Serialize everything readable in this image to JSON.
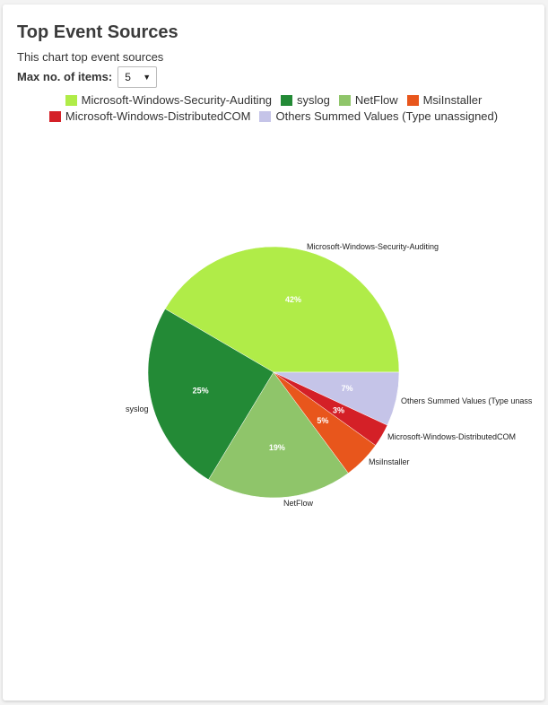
{
  "header": {
    "title": "Top Event Sources",
    "subtitle": "This chart top event sources",
    "max_items_label": "Max no. of items:",
    "max_items_value": "5",
    "select_caret": "▼"
  },
  "colors": {
    "microsoft_security": "#b0ec48",
    "syslog": "#238a36",
    "netflow": "#8fc56a",
    "msiinstaller": "#e8561c",
    "distributedcom": "#d42027",
    "others": "#c5c4e8"
  },
  "chart_data": {
    "type": "pie",
    "title": "Top Event Sources",
    "legend_position": "top-center",
    "slices": [
      {
        "name": "Microsoft-Windows-Security-Auditing",
        "percent": 42,
        "display": "42%",
        "outer_label": "Microsoft-Windows-Security-Auditing",
        "color": "#b0ec48"
      },
      {
        "name": "syslog",
        "percent": 25,
        "display": "25%",
        "outer_label": "syslog",
        "color": "#238a36"
      },
      {
        "name": "NetFlow",
        "percent": 19,
        "display": "19%",
        "outer_label": "NetFlow",
        "color": "#8fc56a"
      },
      {
        "name": "MsiInstaller",
        "percent": 5,
        "display": "5%",
        "outer_label": "MsiInstaller",
        "color": "#e8561c"
      },
      {
        "name": "Microsoft-Windows-DistributedCOM",
        "percent": 3,
        "display": "3%",
        "outer_label": "Microsoft-Windows-DistributedCOM",
        "color": "#d42027"
      },
      {
        "name": "Others Summed Values (Type unassigned)",
        "percent": 7,
        "display": "7%",
        "outer_label": "Others Summed Values (Type unass",
        "color": "#c5c4e8"
      }
    ],
    "legend_rows": [
      [
        0,
        1,
        2,
        3
      ],
      [
        4,
        5
      ]
    ]
  }
}
